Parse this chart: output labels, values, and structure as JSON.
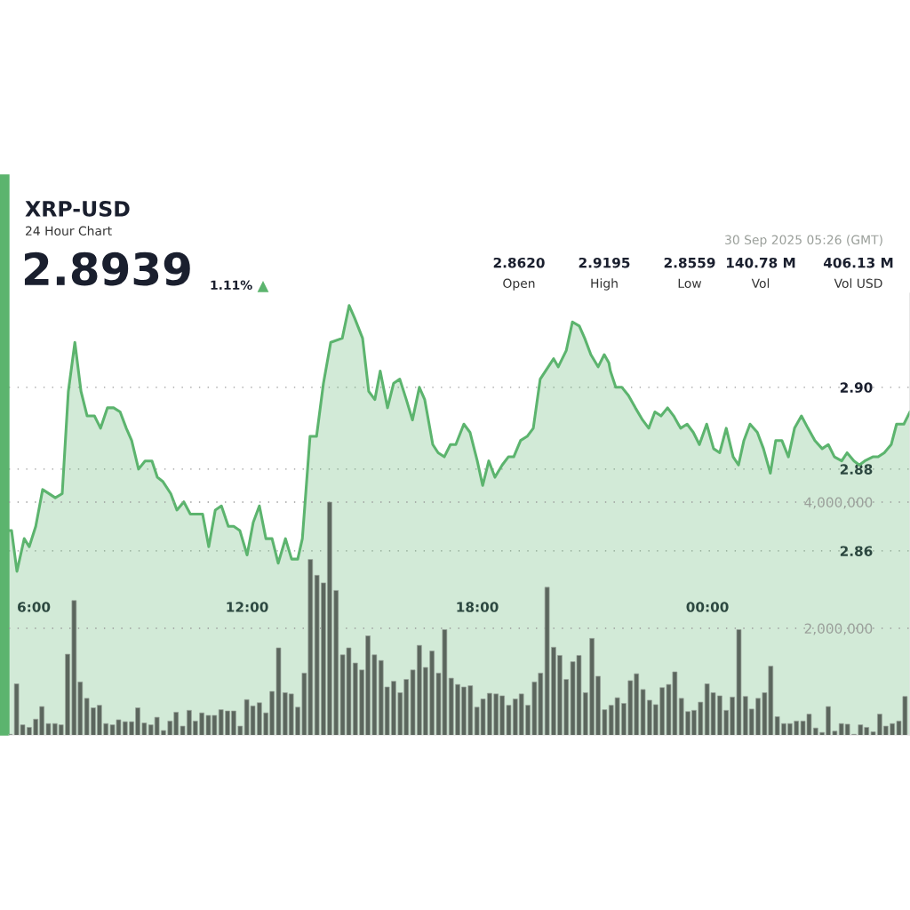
{
  "chart_data": {
    "type": "area",
    "title": "XRP-USD",
    "subtitle": "24 Hour Chart",
    "xlim": [
      5.79,
      29.28
    ],
    "xticks": [
      {
        "value": 6,
        "label": "6:00"
      },
      {
        "value": 12,
        "label": "12:00"
      },
      {
        "value": 18,
        "label": "18:00"
      },
      {
        "value": 24,
        "label": "00:00"
      }
    ],
    "ylim": [
      2.815,
      2.923
    ],
    "yticks": [
      {
        "value": 2.86,
        "label": "2.86"
      },
      {
        "value": 2.88,
        "label": "2.88"
      },
      {
        "value": 2.9,
        "label": "2.90"
      }
    ],
    "y2lim": [
      310000,
      7310000
    ],
    "y2ticks": [
      {
        "value": 2000000,
        "label": "2,000,000"
      },
      {
        "value": 4000000,
        "label": "4,000,000"
      }
    ],
    "grid": "y",
    "series": [
      {
        "color": "#5cb46e",
        "x": [
          5.79,
          5.86,
          6.0,
          6.19,
          6.32,
          6.49,
          6.67,
          7.0,
          7.18,
          7.34,
          7.51,
          7.67,
          7.83,
          8.02,
          8.18,
          8.36,
          8.52,
          8.69,
          8.85,
          8.99,
          9.17,
          9.34,
          9.52,
          9.66,
          9.8,
          10.01,
          10.17,
          10.35,
          10.52,
          10.84,
          11.0,
          11.17,
          11.33,
          11.51,
          11.65,
          11.81,
          12.0,
          12.16,
          12.32,
          12.49,
          12.65,
          12.81,
          13.0,
          13.16,
          13.32,
          13.44,
          13.64,
          13.81,
          13.99,
          14.18,
          14.48,
          14.66,
          14.8,
          15.01,
          15.17,
          15.33,
          15.47,
          15.66,
          15.82,
          15.98,
          16.15,
          16.31,
          16.49,
          16.63,
          16.84,
          16.98,
          17.14,
          17.3,
          17.44,
          17.65,
          17.81,
          18.0,
          18.14,
          18.3,
          18.46,
          18.65,
          18.81,
          18.95,
          19.13,
          19.3,
          19.46,
          19.64,
          19.99,
          20.11,
          20.32,
          20.48,
          20.66,
          20.8,
          20.96,
          21.15,
          21.31,
          21.43,
          21.47,
          21.61,
          21.77,
          21.94,
          22.12,
          22.31,
          22.47,
          22.63,
          22.79,
          22.96,
          23.12,
          23.3,
          23.47,
          23.63,
          23.79,
          23.98,
          24.16,
          24.32,
          24.49,
          24.67,
          24.81,
          24.95,
          25.11,
          25.3,
          25.46,
          25.64,
          25.78,
          25.94,
          26.11,
          26.27,
          26.45,
          26.62,
          26.8,
          26.99,
          27.15,
          27.31,
          27.5,
          27.64,
          27.82,
          27.96,
          28.1,
          28.31,
          28.45,
          28.61,
          28.79,
          28.93,
          29.12,
          29.28
        ],
        "values": [
          2.865,
          2.865,
          2.855,
          2.863,
          2.861,
          2.866,
          2.875,
          2.873,
          2.874,
          2.899,
          2.911,
          2.899,
          2.893,
          2.893,
          2.89,
          2.895,
          2.895,
          2.894,
          2.89,
          2.887,
          2.88,
          2.882,
          2.882,
          2.878,
          2.877,
          2.874,
          2.87,
          2.872,
          2.869,
          2.869,
          2.861,
          2.87,
          2.871,
          2.866,
          2.866,
          2.865,
          2.859,
          2.867,
          2.871,
          2.863,
          2.863,
          2.857,
          2.863,
          2.858,
          2.858,
          2.863,
          2.888,
          2.888,
          2.901,
          2.911,
          2.912,
          2.92,
          2.917,
          2.912,
          2.899,
          2.897,
          2.904,
          2.895,
          2.901,
          2.902,
          2.897,
          2.892,
          2.9,
          2.897,
          2.886,
          2.884,
          2.883,
          2.886,
          2.886,
          2.891,
          2.889,
          2.882,
          2.876,
          2.882,
          2.878,
          2.881,
          2.883,
          2.883,
          2.887,
          2.888,
          2.89,
          2.902,
          2.907,
          2.905,
          2.909,
          2.916,
          2.915,
          2.912,
          2.908,
          2.905,
          2.908,
          2.906,
          2.904,
          2.9,
          2.9,
          2.898,
          2.895,
          2.892,
          2.89,
          2.894,
          2.893,
          2.895,
          2.893,
          2.89,
          2.891,
          2.889,
          2.886,
          2.891,
          2.885,
          2.884,
          2.89,
          2.883,
          2.881,
          2.887,
          2.891,
          2.889,
          2.885,
          2.879,
          2.887,
          2.887,
          2.883,
          2.89,
          2.893,
          2.89,
          2.887,
          2.885,
          2.886,
          2.883,
          2.882,
          2.884,
          2.882,
          2.881,
          2.882,
          2.883,
          2.883,
          2.884,
          2.886,
          2.891,
          2.891,
          2.894
        ]
      },
      {
        "type": "bar",
        "axis": "y2",
        "color": "#5b665d",
        "x": [
          5.82,
          5.99,
          6.15,
          6.32,
          6.49,
          6.65,
          6.82,
          6.99,
          7.15,
          7.32,
          7.49,
          7.65,
          7.82,
          7.99,
          8.15,
          8.32,
          8.49,
          8.65,
          8.82,
          8.99,
          9.15,
          9.32,
          9.49,
          9.65,
          9.82,
          9.99,
          10.15,
          10.32,
          10.49,
          10.65,
          10.82,
          10.99,
          11.15,
          11.32,
          11.49,
          11.65,
          11.82,
          11.99,
          12.15,
          12.32,
          12.49,
          12.65,
          12.82,
          12.99,
          13.15,
          13.32,
          13.49,
          13.65,
          13.82,
          13.99,
          14.15,
          14.32,
          14.49,
          14.65,
          14.82,
          14.99,
          15.15,
          15.32,
          15.49,
          15.65,
          15.82,
          15.99,
          16.15,
          16.32,
          16.49,
          16.65,
          16.82,
          16.99,
          17.15,
          17.32,
          17.49,
          17.65,
          17.82,
          17.99,
          18.15,
          18.32,
          18.49,
          18.65,
          18.82,
          18.99,
          19.15,
          19.32,
          19.49,
          19.65,
          19.82,
          19.99,
          20.15,
          20.32,
          20.49,
          20.65,
          20.82,
          20.99,
          21.15,
          21.32,
          21.49,
          21.65,
          21.82,
          21.99,
          22.15,
          22.32,
          22.49,
          22.65,
          22.82,
          22.99,
          23.15,
          23.32,
          23.49,
          23.65,
          23.82,
          23.99,
          24.15,
          24.32,
          24.49,
          24.65,
          24.82,
          24.99,
          25.15,
          25.32,
          25.49,
          25.65,
          25.82,
          25.99,
          26.15,
          26.32,
          26.49,
          26.65,
          26.82,
          26.99,
          27.15,
          27.32,
          27.49,
          27.65,
          27.82,
          27.99,
          28.15,
          28.32,
          28.49,
          28.65,
          28.82,
          28.99,
          29.15
        ],
        "values": [
          320000,
          1120000,
          470000,
          430000,
          560000,
          760000,
          490000,
          490000,
          470000,
          1590000,
          2440000,
          1150000,
          890000,
          740000,
          780000,
          490000,
          470000,
          550000,
          520000,
          520000,
          740000,
          500000,
          470000,
          590000,
          380000,
          530000,
          670000,
          450000,
          700000,
          530000,
          660000,
          620000,
          620000,
          710000,
          690000,
          690000,
          450000,
          870000,
          770000,
          820000,
          660000,
          1000000,
          1690000,
          980000,
          960000,
          750000,
          1290000,
          3090000,
          2840000,
          2720000,
          4000000,
          2600000,
          1580000,
          1690000,
          1450000,
          1340000,
          1880000,
          1580000,
          1490000,
          1070000,
          1160000,
          980000,
          1190000,
          1340000,
          1730000,
          1380000,
          1640000,
          1290000,
          1980000,
          1210000,
          1110000,
          1070000,
          1090000,
          750000,
          880000,
          970000,
          960000,
          930000,
          780000,
          880000,
          960000,
          780000,
          1150000,
          1290000,
          2650000,
          1700000,
          1570000,
          1190000,
          1470000,
          1570000,
          980000,
          1840000,
          1240000,
          710000,
          780000,
          900000,
          810000,
          1170000,
          1280000,
          1030000,
          860000,
          790000,
          1060000,
          1110000,
          1310000,
          890000,
          680000,
          700000,
          830000,
          1120000,
          980000,
          930000,
          700000,
          910000,
          1980000,
          920000,
          720000,
          890000,
          980000,
          1400000,
          600000,
          490000,
          490000,
          530000,
          530000,
          640000,
          420000,
          350000,
          760000,
          370000,
          490000,
          480000,
          320000,
          470000,
          430000,
          360000,
          640000,
          450000,
          490000,
          530000,
          920000
        ]
      }
    ],
    "annotations": [
      "2.8939",
      "1.11%",
      "▲",
      "2.8620",
      "Open",
      "2.9195",
      "High",
      "2.8559",
      "Low",
      "140.78 M",
      "Vol",
      "406.13 M",
      "Vol USD",
      "30 Sep 2025 05:26 (GMT)"
    ]
  }
}
